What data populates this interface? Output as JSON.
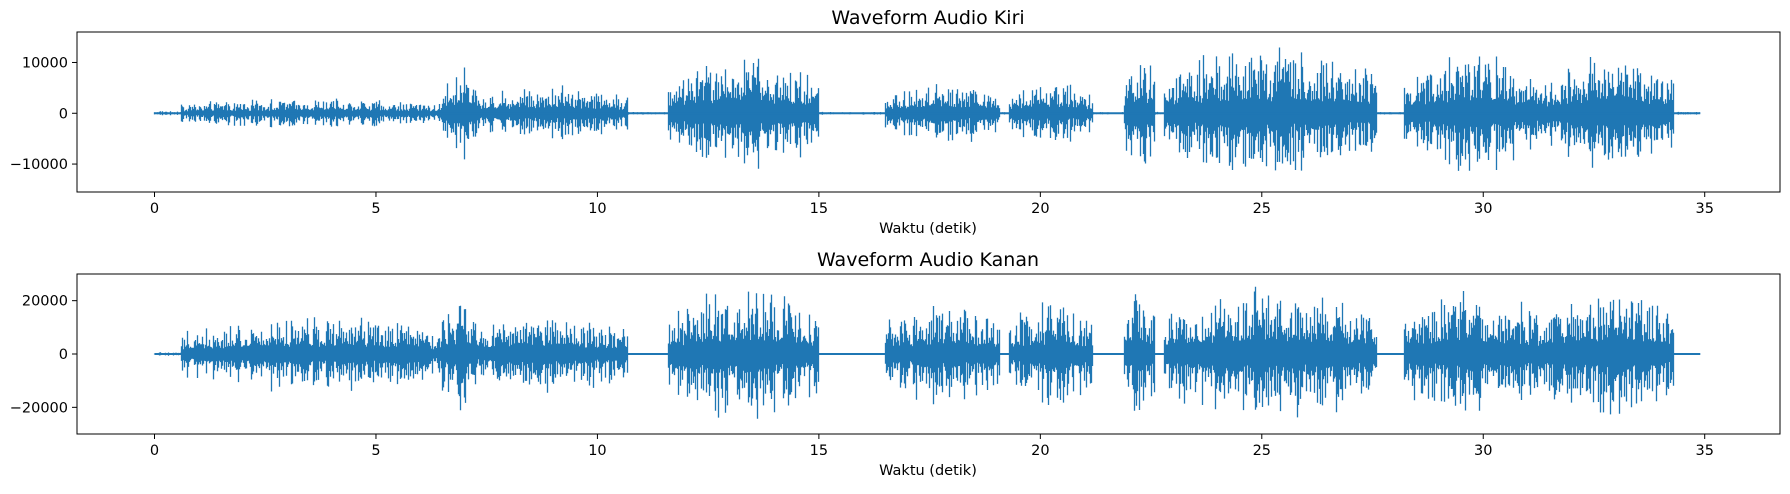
{
  "chart_data": [
    {
      "type": "line",
      "title": "Waveform Audio Kiri",
      "xlabel": "Waktu (detik)",
      "ylabel": "",
      "xlim": [
        -1.75,
        36.7
      ],
      "ylim": [
        -15500,
        16000
      ],
      "xticks": [
        0,
        5,
        10,
        15,
        20,
        25,
        30,
        35
      ],
      "yticks": [
        -10000,
        0,
        10000
      ],
      "ytick_labels": [
        "−10000",
        "0",
        "10000"
      ],
      "grid": false,
      "color": "#1f77b4",
      "duration": 34.9,
      "segments": [
        {
          "x": [
            0,
            0.6
          ],
          "amp": 600
        },
        {
          "x": [
            0.6,
            6.5
          ],
          "amp": 3200
        },
        {
          "x": [
            6.5,
            7.3
          ],
          "amp": 9500
        },
        {
          "x": [
            7.3,
            10.7
          ],
          "amp": 6000
        },
        {
          "x": [
            11.6,
            15.0
          ],
          "amp": 12000
        },
        {
          "x": [
            16.5,
            19.1
          ],
          "amp": 6500
        },
        {
          "x": [
            19.3,
            21.2
          ],
          "amp": 6500
        },
        {
          "x": [
            21.9,
            22.6
          ],
          "amp": 12500
        },
        {
          "x": [
            22.8,
            27.6
          ],
          "amp": 14000
        },
        {
          "x": [
            28.2,
            31.3
          ],
          "amp": 12500
        },
        {
          "x": [
            31.3,
            34.3
          ],
          "amp": 12000
        }
      ]
    },
    {
      "type": "line",
      "title": "Waveform Audio Kanan",
      "xlabel": "Waktu (detik)",
      "ylabel": "",
      "xlim": [
        -1.75,
        36.7
      ],
      "ylim": [
        -30000,
        30000
      ],
      "xticks": [
        0,
        5,
        10,
        15,
        20,
        25,
        30,
        35
      ],
      "yticks": [
        -20000,
        0,
        20000
      ],
      "ytick_labels": [
        "−20000",
        "0",
        "20000"
      ],
      "grid": false,
      "color": "#1f77b4",
      "duration": 34.9,
      "segments": [
        {
          "x": [
            0,
            0.6
          ],
          "amp": 900
        },
        {
          "x": [
            0.6,
            6.5
          ],
          "amp": 15000
        },
        {
          "x": [
            6.5,
            7.3
          ],
          "amp": 23000
        },
        {
          "x": [
            7.3,
            10.7
          ],
          "amp": 16000
        },
        {
          "x": [
            11.6,
            15.0
          ],
          "amp": 27000
        },
        {
          "x": [
            16.5,
            19.1
          ],
          "amp": 20000
        },
        {
          "x": [
            19.3,
            21.2
          ],
          "amp": 21000
        },
        {
          "x": [
            21.9,
            22.6
          ],
          "amp": 27000
        },
        {
          "x": [
            22.8,
            27.6
          ],
          "amp": 27000
        },
        {
          "x": [
            28.2,
            31.3
          ],
          "amp": 25000
        },
        {
          "x": [
            31.3,
            34.3
          ],
          "amp": 26000
        }
      ]
    }
  ]
}
